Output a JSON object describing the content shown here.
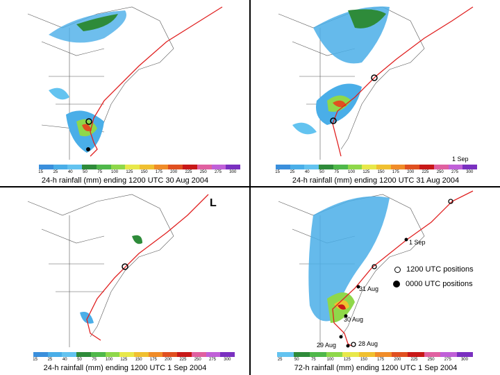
{
  "panels": [
    {
      "caption": "24-h rainfall (mm) ending 1200 UTC 30 Aug 2004",
      "ticks": [
        "15",
        "25",
        "40",
        "50",
        "75",
        "100",
        "125",
        "150",
        "175",
        "200",
        "225",
        "250",
        "275",
        "300"
      ]
    },
    {
      "caption": "24-h rainfall (mm) ending 1200 UTC 31 Aug 2004",
      "ticks": [
        "15",
        "25",
        "40",
        "50",
        "75",
        "100",
        "125",
        "150",
        "175",
        "200",
        "225",
        "250",
        "275",
        "300"
      ],
      "track_label": "1 Sep"
    },
    {
      "caption": "24-h rainfall (mm) ending 1200 UTC 1 Sep 2004",
      "ticks": [
        "15",
        "25",
        "40",
        "50",
        "75",
        "100",
        "125",
        "150",
        "175",
        "200",
        "225",
        "250",
        "275",
        "300"
      ],
      "low_symbol": "L"
    },
    {
      "caption": "72-h rainfall (mm) ending 1200 UTC 1 Sep 2004",
      "ticks": [
        "25",
        "50",
        "75",
        "100",
        "125",
        "150",
        "175",
        "200",
        "225",
        "250",
        "275",
        "300"
      ],
      "track_labels": {
        "sep1": "1 Sep",
        "aug31": "31 Aug",
        "aug30": "30 Aug",
        "aug29": "29 Aug",
        "aug28": "28 Aug"
      },
      "legend": {
        "ring": "1200 UTC positions",
        "dot": "0000 UTC positions"
      }
    }
  ],
  "colors": {
    "scale": [
      "#3a8fdc",
      "#4aaee8",
      "#63c3f0",
      "#2e8b3a",
      "#4fb84a",
      "#8fd84a",
      "#e8e84a",
      "#f0c030",
      "#f08c28",
      "#e05020",
      "#c81818",
      "#e060a0",
      "#c060d8",
      "#7a30c0"
    ],
    "track": "#e02020"
  }
}
